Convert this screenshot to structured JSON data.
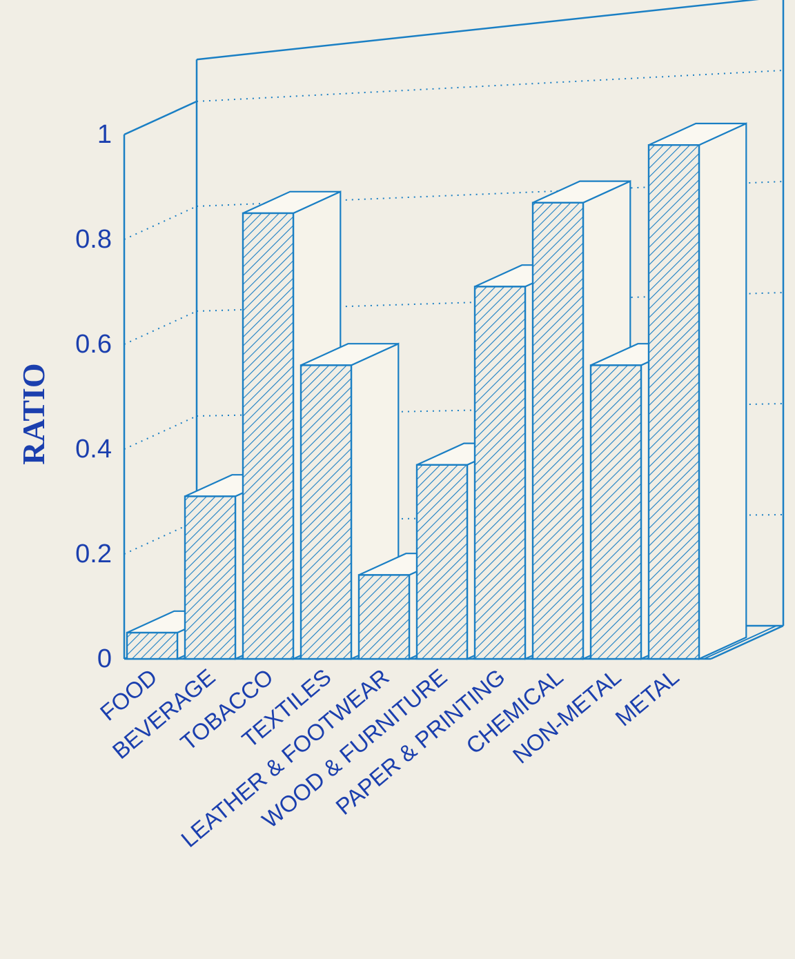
{
  "chart_data": {
    "type": "bar",
    "title": "",
    "xlabel": "",
    "ylabel": "RATIO",
    "ylim": [
      0,
      1
    ],
    "yticks": [
      "0",
      "0.2",
      "0.4",
      "0.6",
      "0.8",
      "1"
    ],
    "categories": [
      "FOOD",
      "BEVERAGE",
      "TOBACCO",
      "TEXTILES",
      "LEATHER & FOOTWEAR",
      "WOOD & FURNITURE",
      "PAPER & PRINTING",
      "CHEMICAL",
      "NON-METAL",
      "METAL"
    ],
    "values": [
      0.05,
      0.31,
      0.85,
      0.56,
      0.16,
      0.37,
      0.71,
      0.87,
      0.56,
      0.98
    ],
    "style": "3d-hatched",
    "grid": "dotted"
  },
  "colors": {
    "ink": "#1a7fc4",
    "label": "#1b3fae",
    "paper": "#f1eee5"
  }
}
